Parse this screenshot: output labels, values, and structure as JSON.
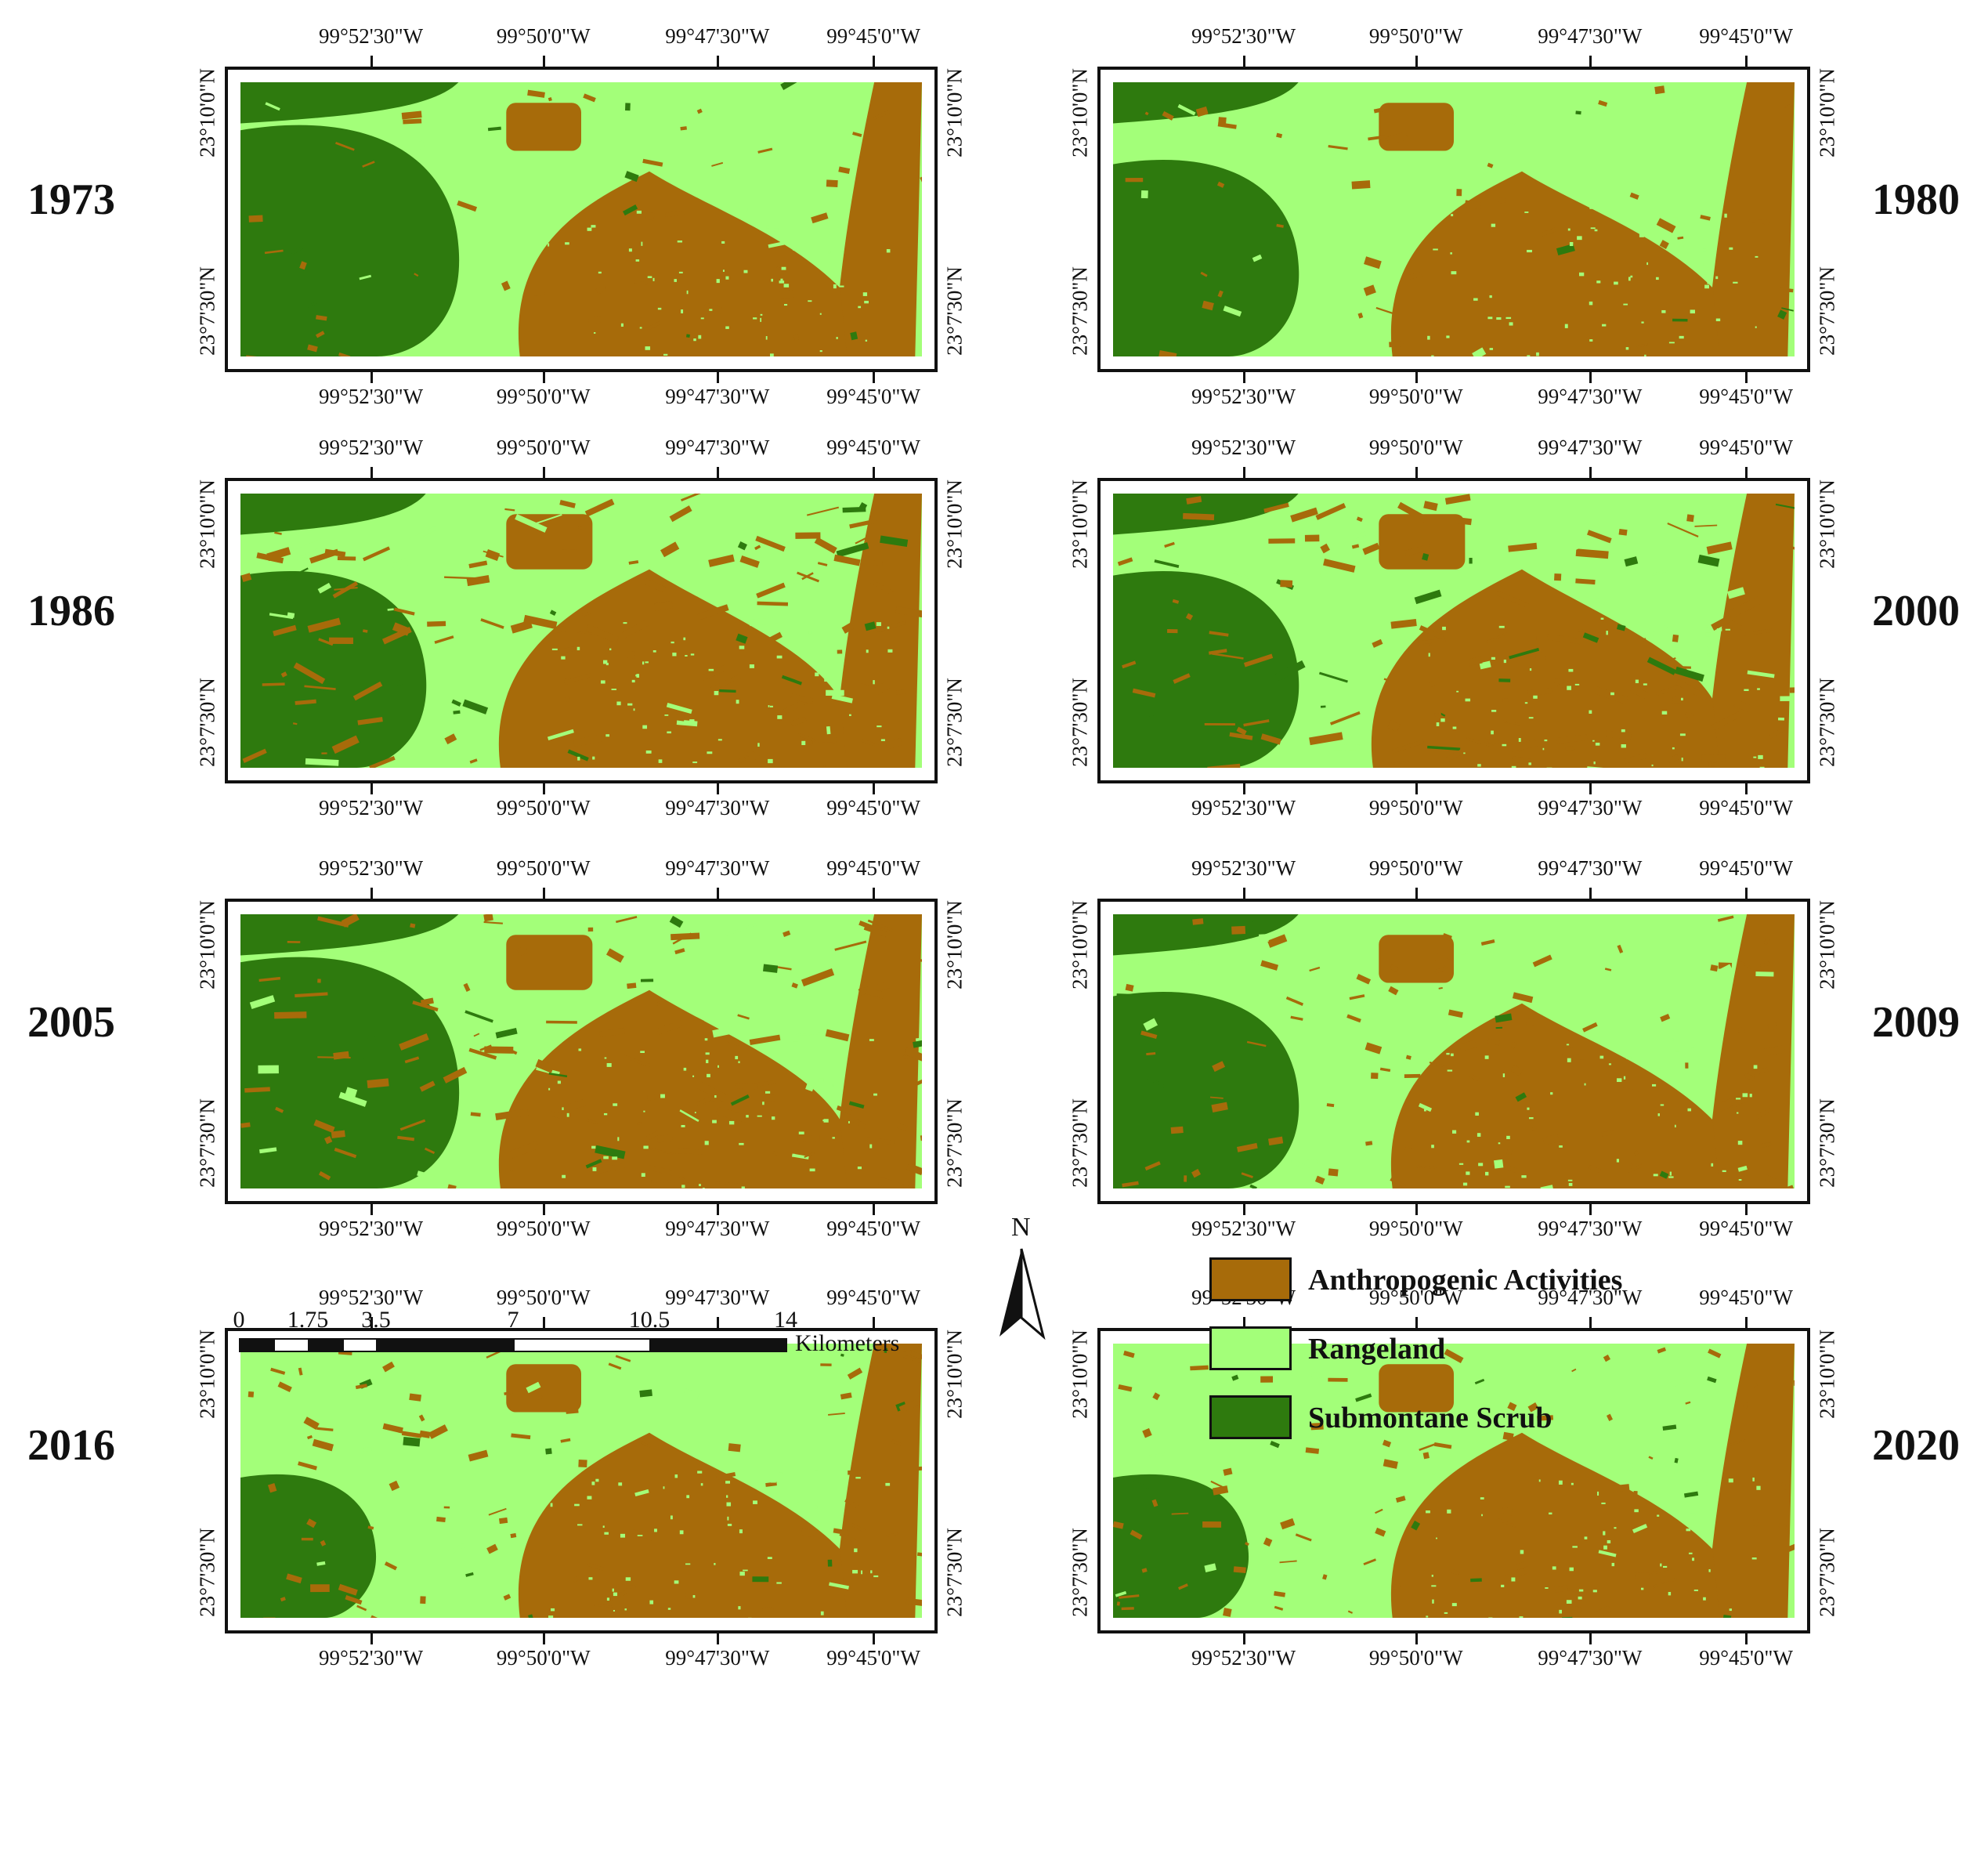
{
  "colors": {
    "anthropogenic": "#a76b0a",
    "rangeland": "#a3ff79",
    "scrub": "#2e7a0e"
  },
  "maps": [
    {
      "year": "1973",
      "scrub_extent": "large",
      "urban_extent": "medium",
      "pattern": "smooth"
    },
    {
      "year": "1980",
      "scrub_extent": "medium",
      "urban_extent": "medium",
      "pattern": "smooth"
    },
    {
      "year": "1986",
      "scrub_extent": "medium",
      "urban_extent": "large",
      "pattern": "dense"
    },
    {
      "year": "2000",
      "scrub_extent": "medium",
      "urban_extent": "large",
      "pattern": "dense"
    },
    {
      "year": "2005",
      "scrub_extent": "large",
      "urban_extent": "large",
      "pattern": "dense"
    },
    {
      "year": "2009",
      "scrub_extent": "medium",
      "urban_extent": "medium",
      "pattern": "scattered"
    },
    {
      "year": "2016",
      "scrub_extent": "small",
      "urban_extent": "medium",
      "pattern": "scattered"
    },
    {
      "year": "2020",
      "scrub_extent": "small",
      "urban_extent": "medium",
      "pattern": "scattered"
    }
  ],
  "longitude_ticks": [
    "99°52'30\"W",
    "99°50'0\"W",
    "99°47'30\"W",
    "99°45'0\"W"
  ],
  "latitude_ticks": [
    "23°10'0\"N",
    "23°7'30\"N"
  ],
  "scale_bar": {
    "labels": [
      "0",
      "1.75",
      "3.5",
      "7",
      "10.5",
      "14"
    ],
    "unit": "Kilometers"
  },
  "north_arrow": {
    "label": "N"
  },
  "legend": [
    {
      "label": "Anthropogenic Activities",
      "color_key": "anthropogenic"
    },
    {
      "label": "Rangeland",
      "color_key": "rangeland"
    },
    {
      "label": "Submontane Scrub",
      "color_key": "scrub"
    }
  ]
}
